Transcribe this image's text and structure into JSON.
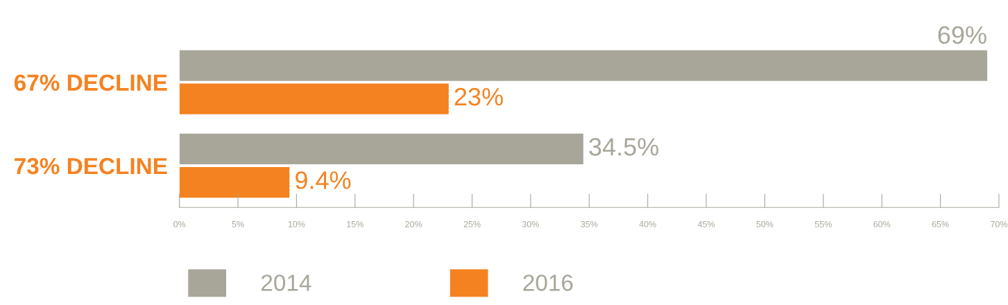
{
  "chart_data": {
    "type": "bar",
    "orientation": "horizontal",
    "categories": [
      "67% DECLINE",
      "73% DECLINE"
    ],
    "series": [
      {
        "name": "2014",
        "color": "#a8a699",
        "values": [
          69,
          34.5
        ],
        "value_labels": [
          "69%",
          "34.5%"
        ]
      },
      {
        "name": "2016",
        "color": "#f58220",
        "values": [
          23,
          9.4
        ],
        "value_labels": [
          "23%",
          "9.4%"
        ]
      }
    ],
    "xlim": [
      0,
      70
    ],
    "xticks": [
      {
        "value": 0,
        "label": "0%"
      },
      {
        "value": 5,
        "label": "5%"
      },
      {
        "value": 10,
        "label": "10%"
      },
      {
        "value": 15,
        "label": "15%"
      },
      {
        "value": 20,
        "label": "20%"
      },
      {
        "value": 25,
        "label": "25%"
      },
      {
        "value": 30,
        "label": "30%"
      },
      {
        "value": 35,
        "label": "35%"
      },
      {
        "value": 40,
        "label": "40%"
      },
      {
        "value": 45,
        "label": "45%"
      },
      {
        "value": 50,
        "label": "50%"
      },
      {
        "value": 55,
        "label": "55%"
      },
      {
        "value": 60,
        "label": "60%"
      },
      {
        "value": 65,
        "label": "65%"
      },
      {
        "value": 70,
        "label": "70%"
      }
    ],
    "grid": false,
    "legend": "bottom"
  }
}
